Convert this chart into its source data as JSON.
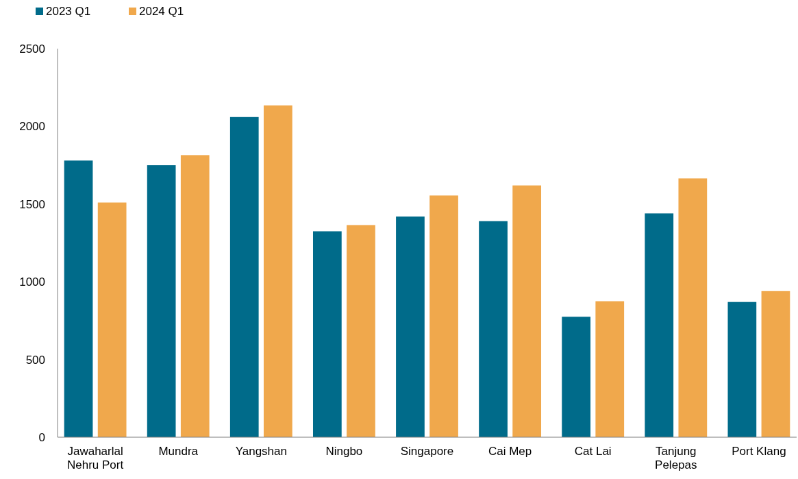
{
  "chart_data": {
    "type": "bar",
    "categories": [
      "Jawaharlal Nehru Port",
      "Mundra",
      "Yangshan",
      "Ningbo",
      "Singapore",
      "Cai Mep",
      "Cat Lai",
      "Tanjung Pelepas",
      "Port Klang"
    ],
    "series": [
      {
        "name": "2023 Q1",
        "color": "#006b8a",
        "values": [
          1780,
          1750,
          2060,
          1325,
          1420,
          1390,
          775,
          1440,
          870
        ]
      },
      {
        "name": "2024 Q1",
        "color": "#f0a84c",
        "values": [
          1510,
          1815,
          2135,
          1365,
          1555,
          1620,
          875,
          1665,
          940
        ]
      }
    ],
    "ylim": [
      0,
      2500
    ],
    "yticks": [
      0,
      500,
      1000,
      1500,
      2000,
      2500
    ],
    "grid": false,
    "legend": "top left"
  }
}
